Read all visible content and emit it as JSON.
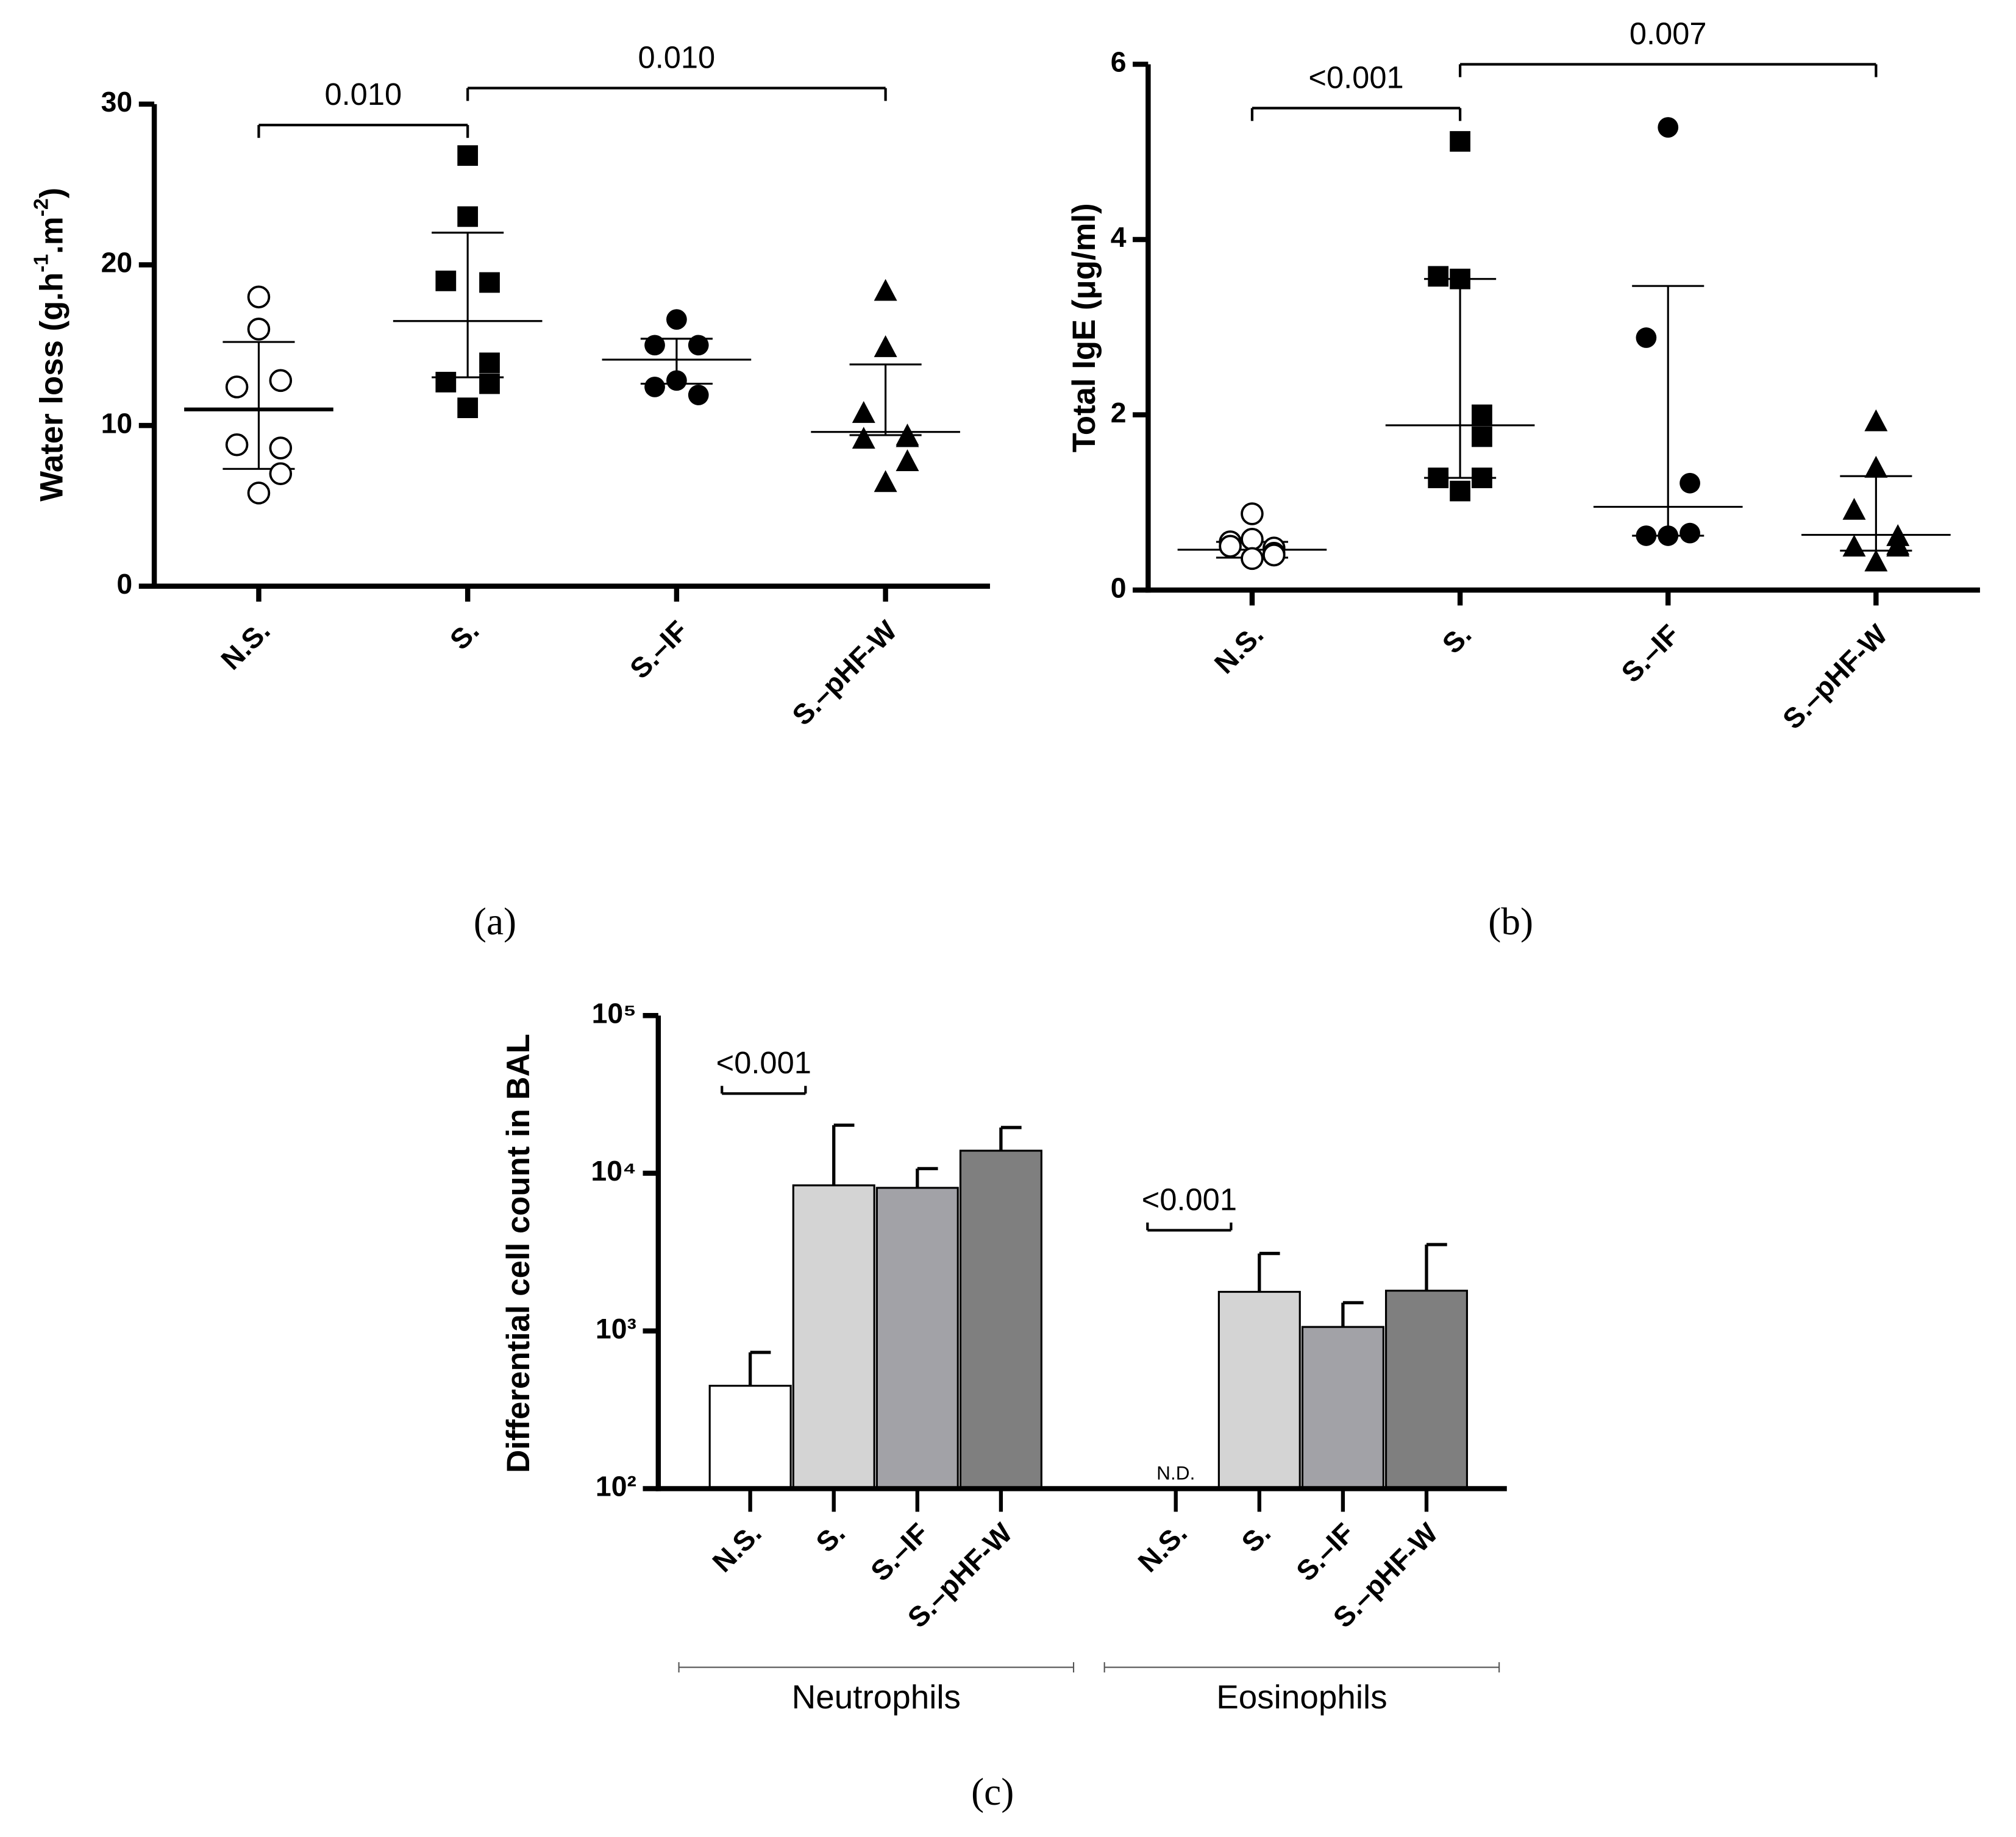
{
  "chart_data": [
    {
      "type": "scatter",
      "label": "(a)",
      "ylabel": [
        "Water loss (g.h",
        "-1",
        ".m",
        "-2",
        ")"
      ],
      "categories": [
        "N.S.",
        "S.",
        "S.–IF",
        "S.–pHF-W"
      ],
      "markers": [
        "open-circle",
        "square",
        "circle",
        "triangle"
      ],
      "points": [
        [
          18.0,
          16.0,
          12.4,
          12.8,
          8.6,
          8.8,
          7.0,
          5.8
        ],
        [
          26.8,
          23.0,
          19.0,
          18.9,
          13.9,
          12.7,
          12.6,
          11.1
        ],
        [
          16.6,
          15.0,
          15.0,
          12.4,
          11.9,
          12.8
        ],
        [
          18.4,
          14.9,
          10.8,
          9.4,
          9.3,
          9.2,
          7.8,
          6.5
        ]
      ],
      "center": [
        11.0,
        16.5,
        14.1,
        9.6
      ],
      "upper": [
        15.2,
        22.0,
        15.4,
        13.8
      ],
      "lower": [
        7.3,
        13.0,
        12.6,
        9.4
      ],
      "ylim": [
        0,
        30
      ],
      "yticks": [
        0,
        10,
        20,
        30
      ],
      "annotations": [
        {
          "text": "0.010",
          "from": "N.S.",
          "to": "S.",
          "y": 28.7
        },
        {
          "text": "0.010",
          "from": "S.",
          "to": "S.–pHF-W",
          "y": 31.0
        }
      ]
    },
    {
      "type": "scatter",
      "label": "(b)",
      "ylabel": [
        "Total IgE (μg/ml)"
      ],
      "categories": [
        "N.S.",
        "S.",
        "S.–IF",
        "S.–pHF-W"
      ],
      "markers": [
        "open-circle",
        "square",
        "circle",
        "triangle"
      ],
      "points": [
        [
          0.87,
          0.58,
          0.55,
          0.48,
          0.42,
          0.5,
          0.4,
          0.36
        ],
        [
          5.12,
          3.55,
          3.58,
          2.0,
          1.75,
          1.28,
          1.28,
          1.13
        ],
        [
          5.28,
          2.88,
          1.22,
          0.62,
          0.65,
          0.62
        ],
        [
          1.93,
          1.4,
          0.92,
          0.62,
          0.52,
          0.5,
          0.5,
          0.33
        ]
      ],
      "center": [
        0.46,
        1.88,
        0.95,
        0.63
      ],
      "upper": [
        0.55,
        3.55,
        3.47,
        1.3
      ],
      "lower": [
        0.37,
        1.28,
        0.62,
        0.45
      ],
      "ylim": [
        0,
        6
      ],
      "yticks": [
        0,
        2,
        4,
        6
      ],
      "annotations": [
        {
          "text": "<0.001",
          "from": "N.S.",
          "to": "S.",
          "y": 5.5
        },
        {
          "text": "0.007",
          "from": "S.",
          "to": "S.–pHF-W",
          "y": 6.0
        }
      ]
    },
    {
      "type": "bar",
      "label": "(c)",
      "log": true,
      "ylabel": [
        "Differential cell count in BAL"
      ],
      "categories": [
        "N.S.",
        "S.",
        "S.–IF",
        "S.–pHF-W"
      ],
      "colors": [
        "#ffffff",
        "#d4d4d4",
        "#a2a2a7",
        "#7f7f7f"
      ],
      "series": [
        {
          "name": "Neutrophils",
          "values": [
            449,
            8380,
            8080,
            13900
          ],
          "errors": [
            282,
            11800,
            2620,
            5600
          ]
        },
        {
          "name": "Eosinophils",
          "values": [
            null,
            1770,
            1060,
            1800
          ],
          "errors": [
            null,
            1330,
            450,
            1730
          ],
          "value_labels": [
            "N.D.",
            null,
            null,
            null
          ]
        }
      ],
      "ylim": [
        100,
        100000
      ],
      "yticks": [
        {
          "value": 100,
          "label": "10²"
        },
        {
          "value": 1000,
          "label": "10³"
        },
        {
          "value": 10000,
          "label": "10⁴"
        },
        {
          "value": 100000,
          "label": "10⁵"
        }
      ],
      "annotations": [
        {
          "text": "<0.001",
          "series": "Neutrophils",
          "from": "N.S.",
          "to": "S.",
          "y": 32000
        },
        {
          "text": "<0.001",
          "series": "Eosinophils",
          "from": "N.S.",
          "to": "S.",
          "y": 4350
        }
      ]
    }
  ]
}
